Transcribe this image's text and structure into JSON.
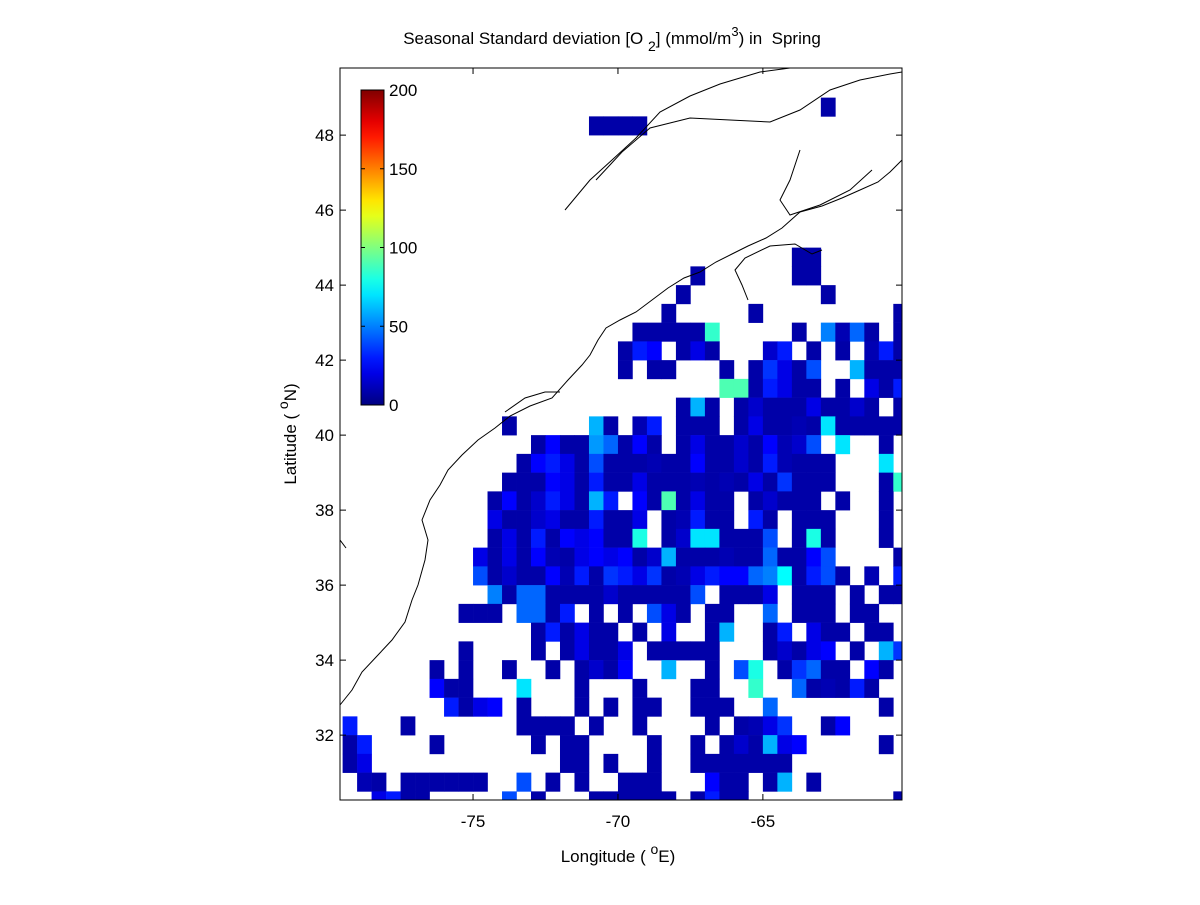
{
  "chart_data": {
    "type": "heatmap",
    "title": [
      "Seasonal Standard deviation [O ",
      "2",
      "] (mmol/m",
      "3",
      ") in  Spring"
    ],
    "xlabel": [
      "Longitude ( ",
      "o",
      "E)"
    ],
    "ylabel": [
      "Latitude ( ",
      "o",
      "N)"
    ],
    "xlim": [
      -79.59,
      -60.2
    ],
    "ylim": [
      30.27,
      49.79
    ],
    "xticks": [
      -75,
      -70,
      -65
    ],
    "yticks": [
      32,
      34,
      36,
      38,
      40,
      42,
      44,
      46,
      48
    ],
    "colorbar": {
      "lim": [
        0,
        200
      ],
      "ticks": [
        0,
        50,
        100,
        150,
        200
      ],
      "colormap": "jet"
    },
    "series": [
      {
        "y": 48.75,
        "x": [
          -62.75
        ],
        "values": [
          8
        ]
      },
      {
        "y": 48.25,
        "x": [
          -70.75,
          -70.25,
          -69.75,
          -69.25
        ],
        "values": [
          8,
          8,
          8,
          8
        ]
      },
      {
        "y": 44.75,
        "x": [
          -63.75,
          -63.25
        ],
        "values": [
          8,
          8
        ]
      },
      {
        "y": 44.25,
        "x": [
          -67.25,
          -63.75,
          -63.25
        ],
        "values": [
          8,
          8,
          8
        ]
      },
      {
        "y": 43.75,
        "x": [
          -67.75,
          -62.75
        ],
        "values": [
          8,
          8
        ]
      },
      {
        "y": 43.25,
        "x": [
          -68.25,
          -65.25,
          -60.25
        ],
        "values": [
          8,
          8,
          8
        ]
      },
      {
        "y": 42.75,
        "x": [
          -69.25,
          -68.75,
          -68.25,
          -67.75,
          -67.25,
          -66.75,
          -63.75,
          -62.75,
          -62.25,
          -61.75,
          -61.25,
          -60.25
        ],
        "values": [
          8,
          8,
          8,
          8,
          8,
          85,
          8,
          50,
          10,
          45,
          8,
          8
        ]
      },
      {
        "y": 42.25,
        "x": [
          -69.75,
          -69.25,
          -68.75,
          -67.75,
          -67.25,
          -66.75,
          -64.75,
          -64.25,
          -63.25,
          -62.25,
          -61.25,
          -60.75,
          -60.25
        ],
        "values": [
          8,
          30,
          25,
          8,
          20,
          8,
          15,
          30,
          8,
          8,
          10,
          30,
          8
        ]
      },
      {
        "y": 41.75,
        "x": [
          -69.75,
          -68.75,
          -68.25,
          -66.25,
          -65.25,
          -64.75,
          -64.25,
          -63.75,
          -63.25,
          -61.75,
          -61.25,
          -60.75,
          -60.25
        ],
        "values": [
          8,
          8,
          8,
          8,
          8,
          35,
          20,
          8,
          40,
          60,
          8,
          8,
          8
        ]
      },
      {
        "y": 41.25,
        "x": [
          -66.25,
          -65.75,
          -65.25,
          -64.75,
          -64.25,
          -63.75,
          -63.25,
          -62.25,
          -61.25,
          -60.75,
          -60.25
        ],
        "values": [
          90,
          90,
          8,
          30,
          20,
          8,
          8,
          8,
          20,
          8,
          30
        ]
      },
      {
        "y": 40.75,
        "x": [
          -67.75,
          -67.25,
          -66.75,
          -65.75,
          -65.25,
          -64.75,
          -64.25,
          -63.75,
          -63.25,
          -62.75,
          -62.25,
          -61.75,
          -61.25,
          -60.25
        ],
        "values": [
          8,
          60,
          8,
          8,
          15,
          8,
          8,
          8,
          20,
          8,
          8,
          15,
          8,
          8
        ]
      },
      {
        "y": 40.25,
        "x": [
          -73.75,
          -70.75,
          -70.25,
          -69.25,
          -68.75,
          -67.75,
          -67.25,
          -66.75,
          -65.75,
          -65.25,
          -64.75,
          -64.25,
          -63.75,
          -63.25,
          -62.75,
          -62.25,
          -61.75,
          -61.25,
          -60.75,
          -60.25
        ],
        "values": [
          8,
          60,
          8,
          10,
          30,
          8,
          8,
          8,
          8,
          20,
          8,
          8,
          10,
          8,
          70,
          8,
          8,
          8,
          8,
          8
        ]
      },
      {
        "y": 39.75,
        "x": [
          -72.75,
          -72.25,
          -71.75,
          -71.25,
          -70.75,
          -70.25,
          -69.75,
          -69.25,
          -68.75,
          -67.75,
          -67.25,
          -66.75,
          -66.25,
          -65.75,
          -65.25,
          -64.75,
          -64.25,
          -63.75,
          -63.25,
          -62.25,
          -60.75
        ],
        "values": [
          8,
          25,
          8,
          8,
          55,
          45,
          8,
          25,
          8,
          8,
          20,
          8,
          8,
          15,
          8,
          25,
          10,
          15,
          40,
          70,
          8
        ]
      },
      {
        "y": 39.25,
        "x": [
          -73.25,
          -72.75,
          -72.25,
          -71.75,
          -71.25,
          -70.75,
          -70.25,
          -69.75,
          -69.25,
          -68.75,
          -68.25,
          -67.75,
          -67.25,
          -66.75,
          -66.25,
          -65.75,
          -65.25,
          -64.75,
          -64.25,
          -63.75,
          -63.25,
          -62.75,
          -60.75
        ],
        "values": [
          8,
          25,
          30,
          20,
          8,
          40,
          8,
          8,
          8,
          10,
          8,
          8,
          25,
          8,
          8,
          15,
          8,
          30,
          10,
          8,
          8,
          8,
          70
        ]
      },
      {
        "y": 38.75,
        "x": [
          -73.75,
          -73.25,
          -72.75,
          -72.25,
          -71.75,
          -71.25,
          -70.75,
          -70.25,
          -69.75,
          -69.25,
          -68.75,
          -68.25,
          -67.75,
          -67.25,
          -66.75,
          -66.25,
          -65.75,
          -65.25,
          -64.75,
          -64.25,
          -63.75,
          -63.25,
          -62.75,
          -60.75,
          -60.25
        ],
        "values": [
          8,
          8,
          8,
          25,
          20,
          8,
          30,
          8,
          8,
          20,
          8,
          8,
          8,
          10,
          8,
          10,
          8,
          20,
          8,
          35,
          8,
          8,
          8,
          8,
          85
        ]
      },
      {
        "y": 38.25,
        "x": [
          -74.25,
          -73.75,
          -73.25,
          -72.75,
          -72.25,
          -71.75,
          -71.25,
          -70.75,
          -70.25,
          -69.25,
          -68.75,
          -68.25,
          -67.75,
          -67.25,
          -66.75,
          -66.25,
          -65.25,
          -64.75,
          -64.25,
          -63.75,
          -63.25,
          -62.25,
          -60.75
        ],
        "values": [
          8,
          25,
          8,
          15,
          30,
          20,
          8,
          60,
          30,
          25,
          8,
          90,
          8,
          20,
          8,
          8,
          8,
          15,
          8,
          8,
          8,
          8,
          8
        ]
      },
      {
        "y": 37.75,
        "x": [
          -74.25,
          -73.75,
          -73.25,
          -72.75,
          -72.25,
          -71.75,
          -71.25,
          -70.75,
          -70.25,
          -69.75,
          -69.25,
          -68.25,
          -67.75,
          -67.25,
          -66.75,
          -66.25,
          -65.25,
          -64.75,
          -63.75,
          -63.25,
          -62.75,
          -60.75
        ],
        "values": [
          20,
          8,
          8,
          15,
          20,
          8,
          8,
          30,
          8,
          8,
          20,
          8,
          10,
          30,
          8,
          8,
          30,
          8,
          8,
          8,
          8,
          8
        ]
      },
      {
        "y": 37.25,
        "x": [
          -74.25,
          -73.75,
          -73.25,
          -72.75,
          -72.25,
          -71.75,
          -71.25,
          -70.75,
          -70.25,
          -69.75,
          -69.25,
          -68.25,
          -67.75,
          -67.25,
          -66.75,
          -66.25,
          -65.75,
          -65.25,
          -64.75,
          -63.75,
          -63.25,
          -62.75,
          -60.75
        ],
        "values": [
          8,
          20,
          8,
          30,
          8,
          25,
          20,
          25,
          8,
          8,
          80,
          8,
          15,
          70,
          70,
          8,
          8,
          8,
          40,
          8,
          80,
          8,
          8
        ]
      },
      {
        "y": 36.75,
        "x": [
          -74.75,
          -74.25,
          -73.75,
          -73.25,
          -72.75,
          -72.25,
          -71.75,
          -71.25,
          -70.75,
          -70.25,
          -69.75,
          -69.25,
          -68.75,
          -68.25,
          -67.75,
          -67.25,
          -66.75,
          -66.25,
          -65.75,
          -65.25,
          -64.75,
          -64.25,
          -63.75,
          -63.25,
          -62.75,
          -60.25
        ],
        "values": [
          20,
          8,
          20,
          8,
          25,
          10,
          8,
          20,
          25,
          20,
          25,
          8,
          15,
          60,
          8,
          8,
          8,
          10,
          8,
          8,
          45,
          8,
          8,
          25,
          40,
          8
        ]
      },
      {
        "y": 36.25,
        "x": [
          -74.75,
          -74.25,
          -73.75,
          -73.25,
          -72.75,
          -72.25,
          -71.75,
          -71.25,
          -70.75,
          -70.25,
          -69.75,
          -69.25,
          -68.75,
          -68.25,
          -67.75,
          -67.25,
          -66.75,
          -66.25,
          -65.75,
          -65.25,
          -64.75,
          -64.25,
          -63.75,
          -63.25,
          -62.75,
          -62.25,
          -61.25,
          -60.25
        ],
        "values": [
          40,
          8,
          15,
          8,
          8,
          25,
          10,
          30,
          8,
          35,
          30,
          20,
          35,
          8,
          10,
          20,
          30,
          25,
          25,
          45,
          50,
          75,
          8,
          30,
          40,
          8,
          10,
          30
        ]
      },
      {
        "y": 35.75,
        "x": [
          -74.25,
          -73.75,
          -73.25,
          -72.75,
          -72.25,
          -71.75,
          -71.25,
          -70.75,
          -70.25,
          -69.75,
          -69.25,
          -68.75,
          -68.25,
          -67.75,
          -67.25,
          -66.25,
          -65.75,
          -65.25,
          -64.75,
          -63.75,
          -63.25,
          -62.75,
          -61.75,
          -60.75,
          -60.25
        ],
        "values": [
          50,
          8,
          45,
          45,
          8,
          8,
          8,
          8,
          15,
          8,
          8,
          8,
          8,
          8,
          40,
          8,
          8,
          8,
          20,
          8,
          8,
          8,
          8,
          8,
          8
        ]
      },
      {
        "y": 35.25,
        "x": [
          -75.25,
          -74.75,
          -74.25,
          -73.25,
          -72.75,
          -72.25,
          -71.75,
          -70.75,
          -69.75,
          -68.75,
          -68.25,
          -67.75,
          -66.75,
          -66.25,
          -64.75,
          -63.75,
          -63.25,
          -62.75,
          -61.75,
          -61.25
        ],
        "values": [
          8,
          8,
          8,
          45,
          45,
          8,
          30,
          8,
          8,
          40,
          20,
          8,
          8,
          8,
          45,
          8,
          8,
          8,
          8,
          8
        ]
      },
      {
        "y": 34.75,
        "x": [
          -72.75,
          -72.25,
          -71.75,
          -71.25,
          -70.75,
          -70.25,
          -69.25,
          -68.25,
          -66.75,
          -66.25,
          -64.75,
          -64.25,
          -63.25,
          -62.75,
          -62.25,
          -61.25,
          -60.75
        ],
        "values": [
          8,
          30,
          8,
          20,
          8,
          8,
          8,
          20,
          8,
          60,
          8,
          30,
          20,
          8,
          8,
          8,
          8
        ]
      },
      {
        "y": 34.25,
        "x": [
          -75.25,
          -72.75,
          -71.75,
          -71.25,
          -70.75,
          -70.25,
          -69.75,
          -68.75,
          -68.25,
          -67.75,
          -67.25,
          -66.75,
          -64.75,
          -64.25,
          -63.75,
          -63.25,
          -62.75,
          -61.75,
          -60.75,
          -60.25
        ],
        "values": [
          8,
          8,
          8,
          20,
          8,
          8,
          20,
          8,
          8,
          8,
          8,
          8,
          8,
          15,
          8,
          20,
          25,
          8,
          60,
          35
        ]
      },
      {
        "y": 33.75,
        "x": [
          -76.25,
          -75.25,
          -73.75,
          -72.25,
          -71.25,
          -70.75,
          -70.25,
          -69.75,
          -68.25,
          -66.75,
          -65.75,
          -65.25,
          -64.25,
          -63.75,
          -63.25,
          -62.75,
          -62.25,
          -61.25,
          -60.75
        ],
        "values": [
          8,
          8,
          8,
          8,
          8,
          15,
          8,
          25,
          60,
          8,
          40,
          80,
          8,
          35,
          45,
          8,
          8,
          25,
          8
        ]
      },
      {
        "y": 33.25,
        "x": [
          -76.25,
          -75.75,
          -75.25,
          -73.25,
          -71.25,
          -69.25,
          -67.25,
          -66.75,
          -65.25,
          -63.75,
          -63.25,
          -62.75,
          -62.25,
          -61.75,
          -61.25
        ],
        "values": [
          25,
          8,
          8,
          70,
          8,
          8,
          8,
          8,
          85,
          45,
          8,
          10,
          8,
          30,
          8
        ]
      },
      {
        "y": 32.75,
        "x": [
          -75.75,
          -75.25,
          -74.75,
          -74.25,
          -73.25,
          -71.25,
          -70.25,
          -69.25,
          -68.75,
          -67.25,
          -66.75,
          -66.25,
          -64.75,
          -60.75
        ],
        "values": [
          30,
          8,
          20,
          25,
          8,
          8,
          8,
          8,
          8,
          8,
          8,
          8,
          45,
          8
        ]
      },
      {
        "y": 32.25,
        "x": [
          -79.25,
          -77.25,
          -73.25,
          -72.75,
          -72.25,
          -71.75,
          -70.75,
          -69.25,
          -66.75,
          -65.75,
          -65.25,
          -64.75,
          -64.25,
          -62.75,
          -62.25
        ],
        "values": [
          30,
          8,
          8,
          8,
          8,
          8,
          8,
          8,
          8,
          8,
          10,
          20,
          35,
          8,
          25
        ]
      },
      {
        "y": 31.75,
        "x": [
          -79.25,
          -78.75,
          -76.25,
          -72.75,
          -71.75,
          -71.25,
          -68.75,
          -67.25,
          -66.25,
          -65.75,
          -65.25,
          -64.75,
          -64.25,
          -63.75,
          -60.75
        ],
        "values": [
          8,
          30,
          8,
          8,
          8,
          8,
          8,
          8,
          8,
          15,
          8,
          60,
          20,
          25,
          8
        ]
      },
      {
        "y": 31.25,
        "x": [
          -79.25,
          -78.75,
          -71.75,
          -71.25,
          -70.25,
          -68.75,
          -67.25,
          -66.75,
          -66.25,
          -65.75,
          -65.25,
          -64.75,
          -64.25
        ],
        "values": [
          8,
          20,
          8,
          8,
          8,
          8,
          8,
          8,
          8,
          8,
          8,
          8,
          8
        ]
      },
      {
        "y": 30.75,
        "x": [
          -78.75,
          -78.25,
          -77.25,
          -76.75,
          -76.25,
          -75.75,
          -75.25,
          -74.75,
          -73.25,
          -72.25,
          -71.25,
          -69.75,
          -69.25,
          -68.75,
          -66.75,
          -66.25,
          -65.75,
          -64.75,
          -64.25,
          -63.25
        ],
        "values": [
          10,
          8,
          8,
          8,
          8,
          8,
          8,
          8,
          40,
          8,
          8,
          8,
          8,
          8,
          25,
          8,
          8,
          8,
          60,
          8
        ]
      },
      {
        "y": 30.25,
        "x": [
          -78.25,
          -77.75,
          -77.25,
          -76.75,
          -73.75,
          -72.75,
          -70.75,
          -70.25,
          -69.75,
          -69.25,
          -68.75,
          -68.25,
          -67.25,
          -66.75,
          -66.25,
          -65.75,
          -60.25
        ],
        "values": [
          20,
          30,
          8,
          8,
          40,
          8,
          8,
          8,
          8,
          8,
          8,
          8,
          8,
          30,
          8,
          8,
          8
        ]
      }
    ]
  }
}
